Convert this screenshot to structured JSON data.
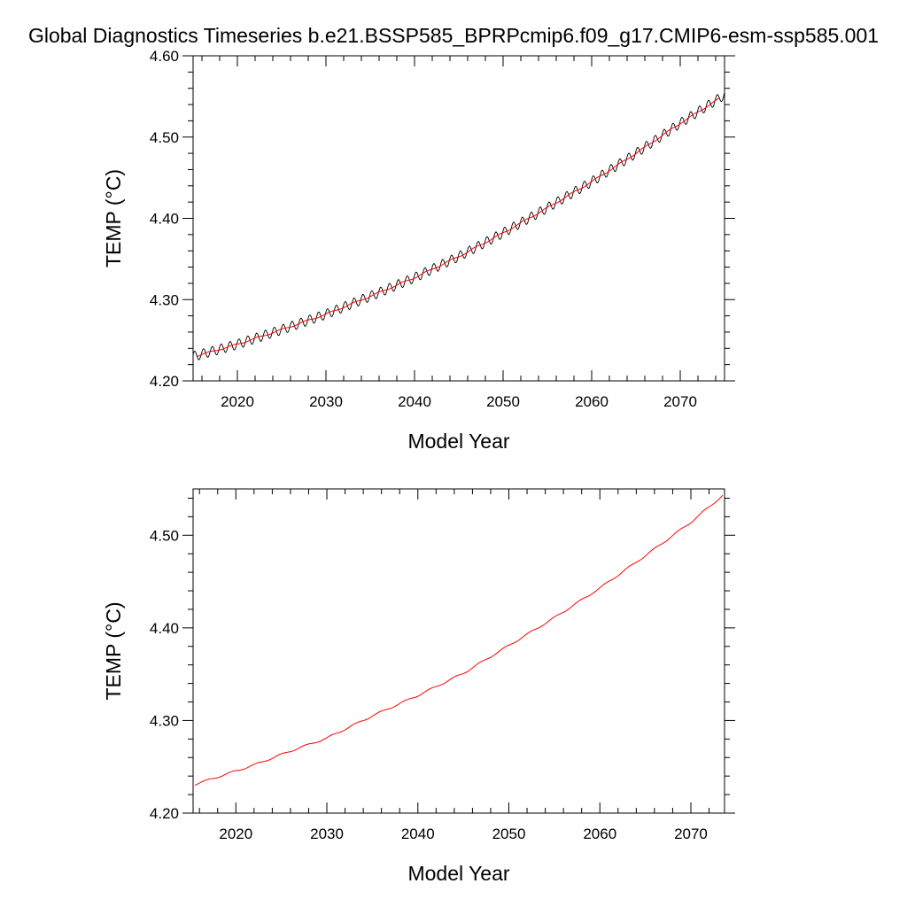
{
  "figure": {
    "title": "Global Diagnostics Timeseries b.e21.BSSP585_BPRPcmip6.f09_g17.CMIP6-esm-ssp585.001"
  },
  "chart_data": [
    {
      "type": "line",
      "title": "Global Diagnostics Timeseries b.e21.BSSP585_BPRPcmip6.f09_g17.CMIP6-esm-ssp585.001",
      "xlabel": "Model Year",
      "ylabel": "TEMP (°C)",
      "xlim": [
        2015,
        2075
      ],
      "ylim": [
        4.2,
        4.6
      ],
      "x_ticks": [
        2020,
        2030,
        2040,
        2050,
        2060,
        2070
      ],
      "x_tick_labels": [
        "2020",
        "2030",
        "2040",
        "2050",
        "2060",
        "2070"
      ],
      "y_ticks": [
        4.2,
        4.3,
        4.4,
        4.5,
        4.6
      ],
      "y_tick_labels": [
        "4.20",
        "4.30",
        "4.40",
        "4.50",
        "4.60"
      ],
      "grid": false,
      "legend": "none",
      "seasonal_cycle_amplitude": 0.006,
      "series": [
        {
          "kind": "monthly",
          "color": "#000000",
          "x": [
            2015.0,
            2020.0,
            2025.0,
            2030.0,
            2035.0,
            2040.0,
            2045.0,
            2050.0,
            2055.0,
            2060.0,
            2065.0,
            2070.0,
            2075.0
          ],
          "values": [
            4.23,
            4.245,
            4.263,
            4.282,
            4.304,
            4.327,
            4.353,
            4.382,
            4.413,
            4.445,
            4.48,
            4.517,
            4.552
          ]
        },
        {
          "kind": "annual",
          "color": "#ff0000",
          "x": [
            2015.5,
            2020.0,
            2025.0,
            2030.0,
            2035.0,
            2040.0,
            2045.0,
            2050.0,
            2055.0,
            2060.0,
            2065.0,
            2070.0,
            2074.5
          ],
          "values": [
            4.231,
            4.245,
            4.263,
            4.282,
            4.304,
            4.327,
            4.353,
            4.382,
            4.413,
            4.445,
            4.48,
            4.517,
            4.548
          ]
        }
      ]
    },
    {
      "type": "line",
      "xlabel": "Model Year",
      "ylabel": "TEMP (°C)",
      "xlim": [
        2015.3,
        2073.7
      ],
      "ylim": [
        4.2,
        4.55
      ],
      "x_ticks": [
        2020,
        2030,
        2040,
        2050,
        2060,
        2070
      ],
      "x_tick_labels": [
        "2020",
        "2030",
        "2040",
        "2050",
        "2060",
        "2070"
      ],
      "y_ticks": [
        4.2,
        4.3,
        4.4,
        4.5
      ],
      "y_tick_labels": [
        "4.20",
        "4.30",
        "4.40",
        "4.50"
      ],
      "grid": false,
      "legend": "none",
      "series": [
        {
          "kind": "annual",
          "color": "#ff0000",
          "x": [
            2015.5,
            2018.0,
            2022.0,
            2026.0,
            2030.0,
            2035.0,
            2040.0,
            2045.0,
            2050.0,
            2055.0,
            2060.0,
            2065.0,
            2070.0,
            2073.5
          ],
          "values": [
            4.231,
            4.239,
            4.252,
            4.267,
            4.281,
            4.305,
            4.327,
            4.351,
            4.381,
            4.411,
            4.443,
            4.478,
            4.514,
            4.543
          ]
        }
      ]
    }
  ]
}
